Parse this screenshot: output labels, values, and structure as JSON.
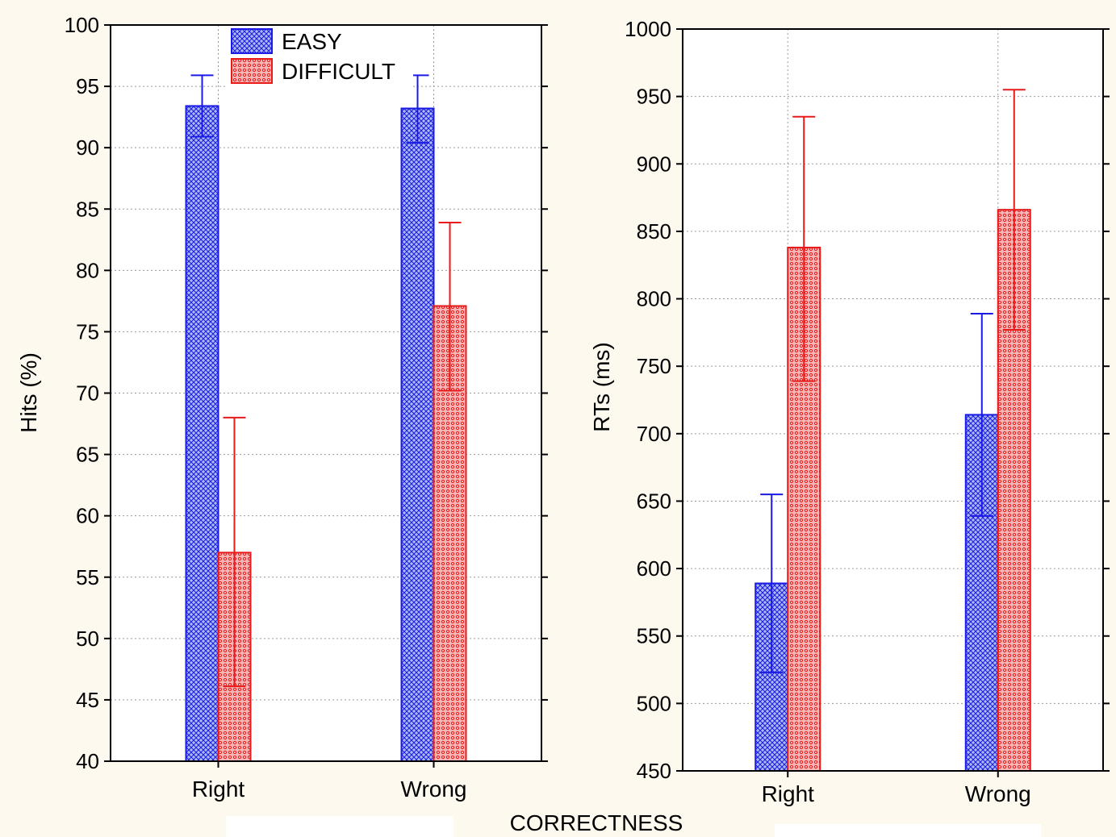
{
  "figure": {
    "shared_xlabel": "CORRECTNESS",
    "colors": {
      "background": "#fdf9ef",
      "easy": "#1a1ae6",
      "easy_fill": "#aab8ee",
      "difficult": "#e81a1a",
      "difficult_fill": "#f4b6b6",
      "grid": "#9a9a9a"
    }
  },
  "chart_data": [
    {
      "type": "bar",
      "title": "",
      "xlabel": "",
      "ylabel": "Hits (%)",
      "ylim": [
        40,
        100
      ],
      "yticks": [
        40,
        45,
        50,
        55,
        60,
        65,
        70,
        75,
        80,
        85,
        90,
        95,
        100
      ],
      "categories": [
        "Right",
        "Wrong"
      ],
      "grid": true,
      "legend": "top-center",
      "series": [
        {
          "name": "EASY",
          "values": [
            93.4,
            93.2
          ],
          "err_low": [
            90.9,
            90.4
          ],
          "err_high": [
            95.9,
            95.9
          ]
        },
        {
          "name": "DIFFICULT",
          "values": [
            57.0,
            77.1
          ],
          "err_low": [
            46.1,
            70.2
          ],
          "err_high": [
            68.0,
            83.9
          ]
        }
      ]
    },
    {
      "type": "bar",
      "title": "",
      "xlabel": "",
      "ylabel": "RTs (ms)",
      "ylim": [
        450,
        1000
      ],
      "yticks": [
        450,
        500,
        550,
        600,
        650,
        700,
        750,
        800,
        850,
        900,
        950,
        1000
      ],
      "categories": [
        "Right",
        "Wrong"
      ],
      "grid": true,
      "series": [
        {
          "name": "EASY",
          "values": [
            589,
            714
          ],
          "err_low": [
            523,
            639
          ],
          "err_high": [
            655,
            789
          ]
        },
        {
          "name": "DIFFICULT",
          "values": [
            838,
            866
          ],
          "err_low": [
            739,
            777
          ],
          "err_high": [
            935,
            955
          ]
        }
      ]
    }
  ]
}
